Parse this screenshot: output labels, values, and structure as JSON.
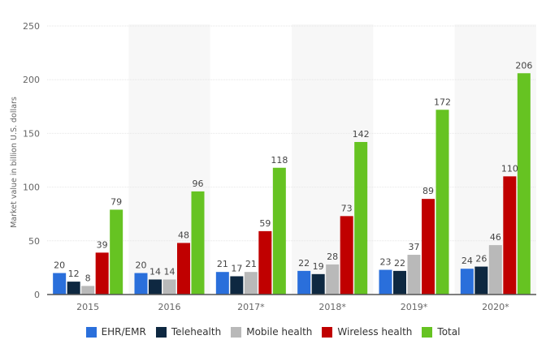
{
  "chart_data": {
    "type": "bar",
    "title": "",
    "xlabel": "",
    "ylabel": "Market value in billion U.S. dollars",
    "ylim": [
      0,
      250
    ],
    "yticks": [
      0,
      50,
      100,
      150,
      200,
      250
    ],
    "grid": true,
    "legend_position": "bottom",
    "categories": [
      "2015",
      "2016",
      "2017*",
      "2018*",
      "2019*",
      "2020*"
    ],
    "series": [
      {
        "name": "EHR/EMR",
        "color": "#2a6fdb",
        "values": [
          20,
          20,
          21,
          22,
          23,
          24
        ]
      },
      {
        "name": "Telehealth",
        "color": "#0e2841",
        "values": [
          12,
          14,
          17,
          19,
          22,
          26
        ]
      },
      {
        "name": "Mobile health",
        "color": "#b9b9b9",
        "values": [
          8,
          14,
          21,
          28,
          37,
          46
        ]
      },
      {
        "name": "Wireless health",
        "color": "#c00000",
        "values": [
          39,
          48,
          59,
          73,
          89,
          110
        ]
      },
      {
        "name": "Total",
        "color": "#66c322",
        "values": [
          79,
          96,
          118,
          142,
          172,
          206
        ]
      }
    ]
  }
}
